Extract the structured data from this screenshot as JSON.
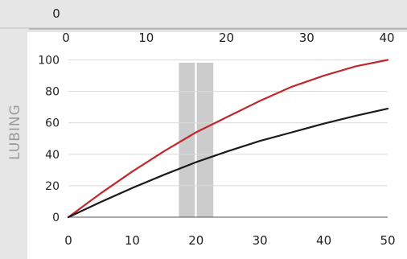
{
  "chart_data": {
    "type": "line",
    "ylabel": "LUBING",
    "top_axis_marker": "0",
    "x": [
      0,
      5,
      10,
      15,
      20,
      25,
      30,
      35,
      40,
      45,
      50
    ],
    "xlim": [
      0,
      50
    ],
    "ylim": [
      0,
      110
    ],
    "x_ticks": [
      "0",
      "10",
      "20",
      "30",
      "40",
      "50"
    ],
    "y_ticks": [
      "0",
      "20",
      "40",
      "60",
      "80",
      "100"
    ],
    "top_axis_ticks": [
      "0",
      "10",
      "20",
      "30",
      "40"
    ],
    "top_axis_lim": [
      0,
      40
    ],
    "series": [
      {
        "color": "#c0282d",
        "values": [
          0,
          15,
          29,
          42,
          54,
          64,
          74,
          83,
          90,
          96,
          100
        ]
      },
      {
        "color": "#1a1a1a",
        "values": [
          0,
          9.5,
          18.5,
          27,
          35,
          42,
          48.5,
          54,
          59.5,
          64.5,
          69
        ]
      }
    ],
    "highlight_bands": [
      {
        "x_range": [
          17.3,
          19.8
        ],
        "color": "#cccccc"
      },
      {
        "x_range": [
          20.1,
          22.7
        ],
        "color": "#cccccc"
      }
    ],
    "grid": "horizontal",
    "grid_color": "#d9d9d9",
    "colors": {
      "background": "#e6e6e6",
      "plot_background": "#ffffff",
      "axis": "#555555",
      "text": "#222222",
      "ylabel": "#9a9a9a"
    }
  }
}
